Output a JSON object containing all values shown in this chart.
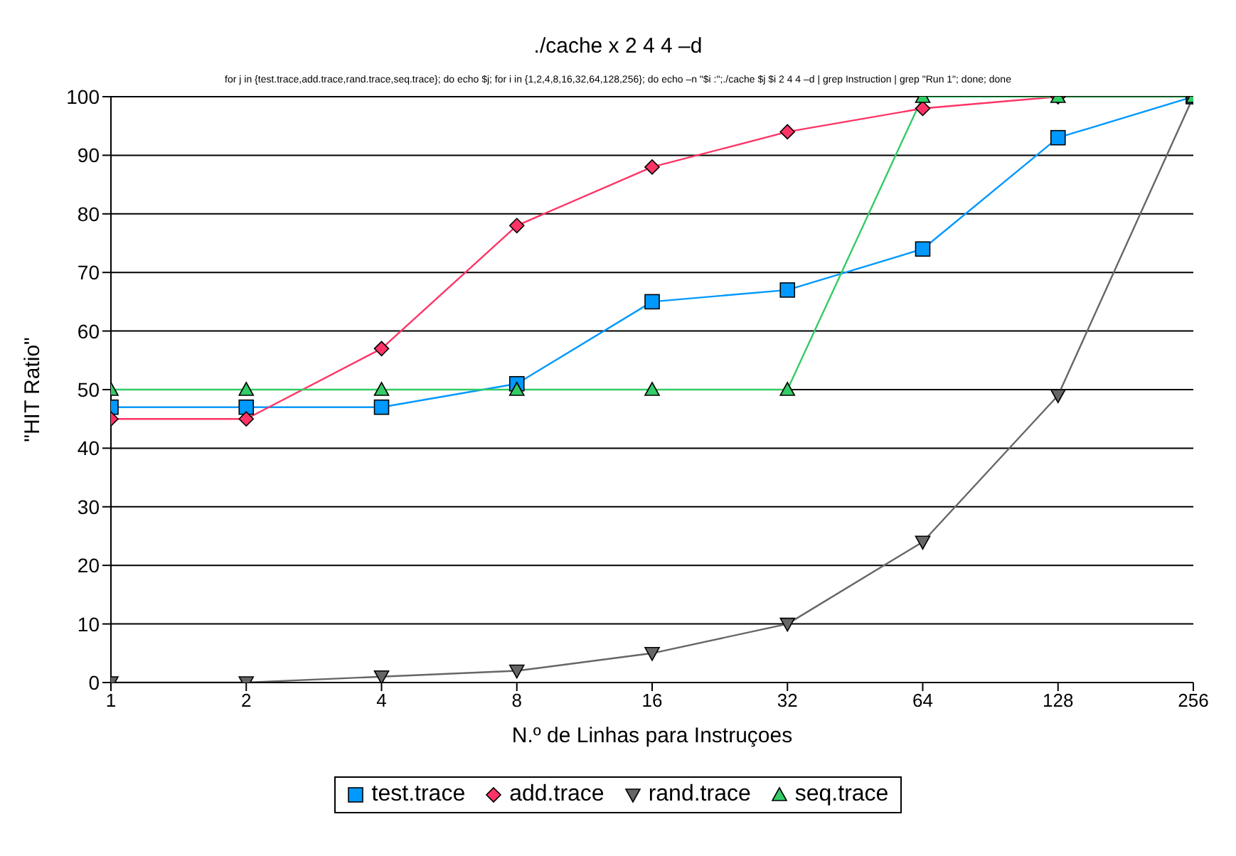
{
  "chart_data": {
    "type": "line",
    "title": "./cache x 2 4 4 –d",
    "subtitle": "for j in {test.trace,add.trace,rand.trace,seq.trace}; do echo $j; for i in {1,2,4,8,16,32,64,128,256}; do echo –n \"$i :\";./cache $j $i 2 4 4 –d | grep Instruction | grep \"Run 1\"; done; done",
    "xlabel": "N.º de Linhas para Instruçoes",
    "ylabel": "\"HIT Ratio\"",
    "categories": [
      "1",
      "2",
      "4",
      "8",
      "16",
      "32",
      "64",
      "128",
      "256"
    ],
    "ylim": [
      0,
      100
    ],
    "yticks": [
      0,
      10,
      20,
      30,
      40,
      50,
      60,
      70,
      80,
      90,
      100
    ],
    "grid": "y",
    "legend": "bottom",
    "series": [
      {
        "name": "test.trace",
        "color": "#0099ff",
        "marker": "square",
        "values": [
          47,
          47,
          47,
          51,
          65,
          67,
          74,
          93,
          100
        ]
      },
      {
        "name": "add.trace",
        "color": "#ff3366",
        "marker": "diamond",
        "values": [
          45,
          45,
          57,
          78,
          88,
          94,
          98,
          100,
          100
        ]
      },
      {
        "name": "rand.trace",
        "color": "#666666",
        "marker": "triangle-down",
        "values": [
          0,
          0,
          1,
          2,
          5,
          10,
          24,
          49,
          100
        ]
      },
      {
        "name": "seq.trace",
        "color": "#33cc66",
        "marker": "triangle",
        "values": [
          50,
          50,
          50,
          50,
          50,
          50,
          100,
          100,
          100
        ]
      }
    ]
  }
}
